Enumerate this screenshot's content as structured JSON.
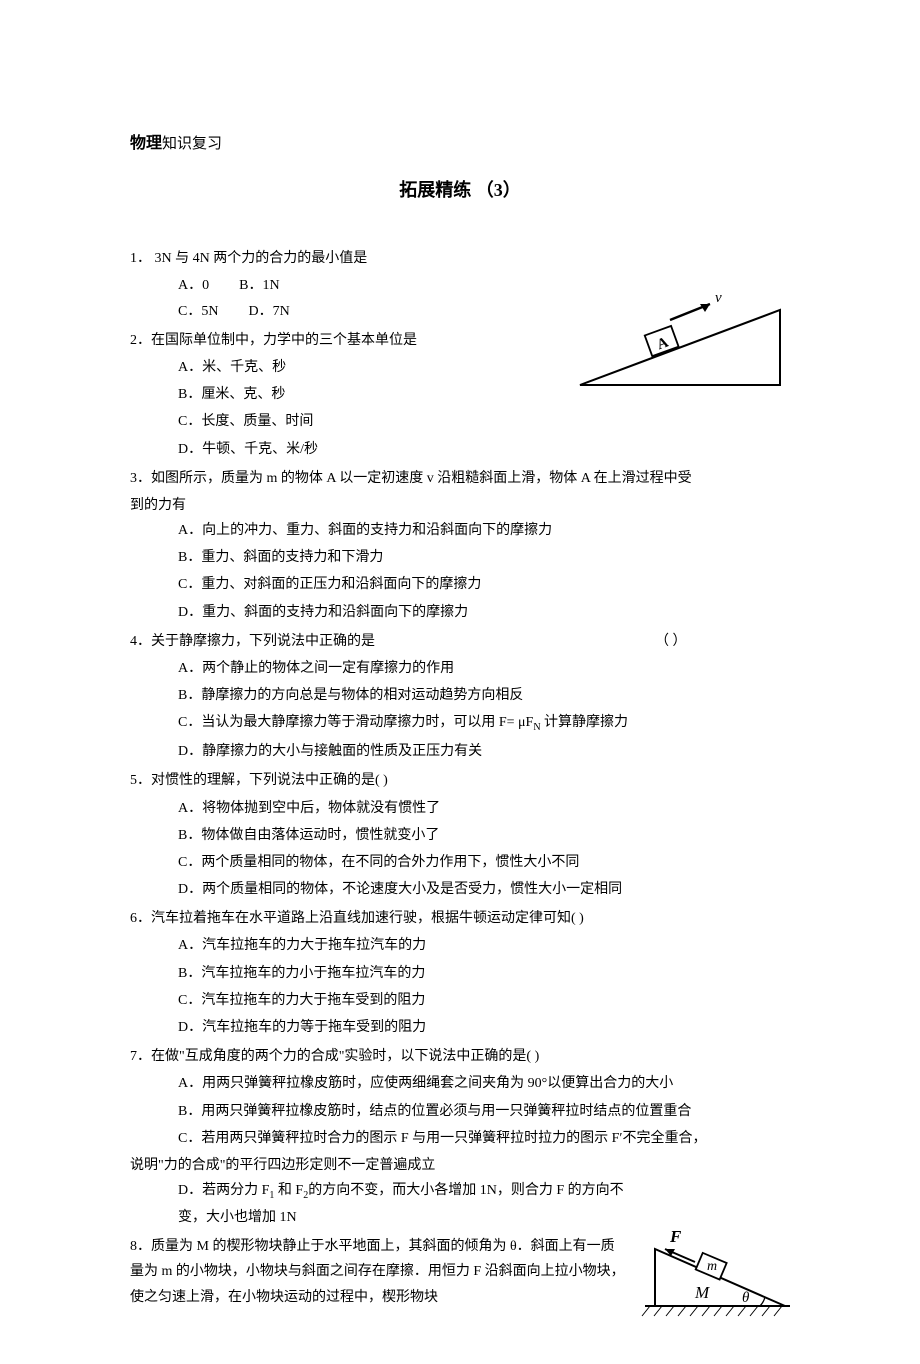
{
  "header": {
    "subject_bold": "物理",
    "subject_rest": "知识复习"
  },
  "title": "拓展精练  （3）",
  "questions": [
    {
      "num": "1．",
      "stem": " 3N 与 4N 两个力的合力的最小值是",
      "option_layout": "two-row",
      "options_row1": [
        "A．0",
        "B．1N"
      ],
      "options_row2": [
        "C．5N",
        "D．7N"
      ]
    },
    {
      "num": "2．",
      "stem": "在国际单位制中，力学中的三个基本单位是",
      "option_layout": "stack",
      "options": [
        "A．米、千克、秒",
        "B．厘米、克、秒",
        "C．长度、质量、时间",
        "D．牛顿、千克、米/秒"
      ]
    },
    {
      "num": "3．",
      "stem": "如图所示，质量为 m 的物体 A 以一定初速度 v 沿粗糙斜面上滑，物体 A 在上滑过程中受到的力有",
      "option_layout": "stack",
      "options": [
        "A．向上的冲力、重力、斜面的支持力和沿斜面向下的摩擦力",
        "B．重力、斜面的支持力和下滑力",
        "C．重力、对斜面的正压力和沿斜面向下的摩擦力",
        "D．重力、斜面的支持力和沿斜面向下的摩擦力"
      ]
    },
    {
      "num": "4．",
      "stem": "关于静摩擦力，下列说法中正确的是",
      "bracket": "（      ）",
      "bracket_gap": 280,
      "option_layout": "stack",
      "options": [
        "A．两个静止的物体之间一定有摩擦力的作用",
        "B．静摩擦力的方向总是与物体的相对运动趋势方向相反",
        "C．当认为最大静摩擦力等于滑动摩擦力时，可以用 F= μF<sub>N</sub> 计算静摩擦力",
        "D．静摩擦力的大小与接触面的性质及正压力有关"
      ]
    },
    {
      "num": "5．",
      "stem": "对惯性的理解，下列说法中正确的是(        )",
      "option_layout": "stack",
      "options": [
        "A．将物体抛到空中后，物体就没有惯性了",
        "B．物体做自由落体运动时，惯性就变小了",
        "C．两个质量相同的物体，在不同的合外力作用下，惯性大小不同",
        "D．两个质量相同的物体，不论速度大小及是否受力，惯性大小一定相同"
      ]
    },
    {
      "num": "6．",
      "stem": "汽车拉着拖车在水平道路上沿直线加速行驶，根据牛顿运动定律可知(        )",
      "option_layout": "stack",
      "options": [
        "A．汽车拉拖车的力大于拖车拉汽车的力",
        "B．汽车拉拖车的力小于拖车拉汽车的力",
        "C．汽车拉拖车的力大于拖车受到的阻力",
        "D．汽车拉拖车的力等于拖车受到的阻力"
      ]
    },
    {
      "num": "7．",
      "stem": "在做\"互成角度的两个力的合成\"实验时，以下说法中正确的是(        )",
      "option_layout": "stack",
      "options": [
        "A．用两只弹簧秤拉橡皮筋时，应使两细绳套之间夹角为 90°以便算出合力的大小",
        "B．用两只弹簧秤拉橡皮筋时，结点的位置必须与用一只弹簧秤拉时结点的位置重合",
        "C．若用两只弹簧秤拉时合力的图示 F 与用一只弹簧秤拉时拉力的图示 F′不完全重合，说明\"力的合成\"的平行四边形定则不一定普遍成立",
        "D．若两分力 F<sub>1</sub> 和 F<sub>2</sub>的方向不变，而大小各增加 1N，则合力 F 的方向不变，大小也增加 1N"
      ],
      "opt_c_unindent": true,
      "opt_d_narrow": true
    },
    {
      "num": "8．",
      "stem": "质量为 M 的楔形物块静止于水平地面上，其斜面的倾角为 θ．斜面上有一质量为 m 的小物块，小物块与斜面之间存在摩擦．用恒力 F 沿斜面向上拉小物块，使之匀速上滑，在小物块运动的过程中，楔形物块",
      "narrow": true
    }
  ],
  "figure1": {
    "label_A": "A",
    "label_v": "v",
    "stroke": "#000000",
    "bg": "#ffffff"
  },
  "figure2": {
    "label_F": "F",
    "label_m": "m",
    "label_M": "M",
    "label_theta": "θ",
    "stroke": "#000000"
  }
}
